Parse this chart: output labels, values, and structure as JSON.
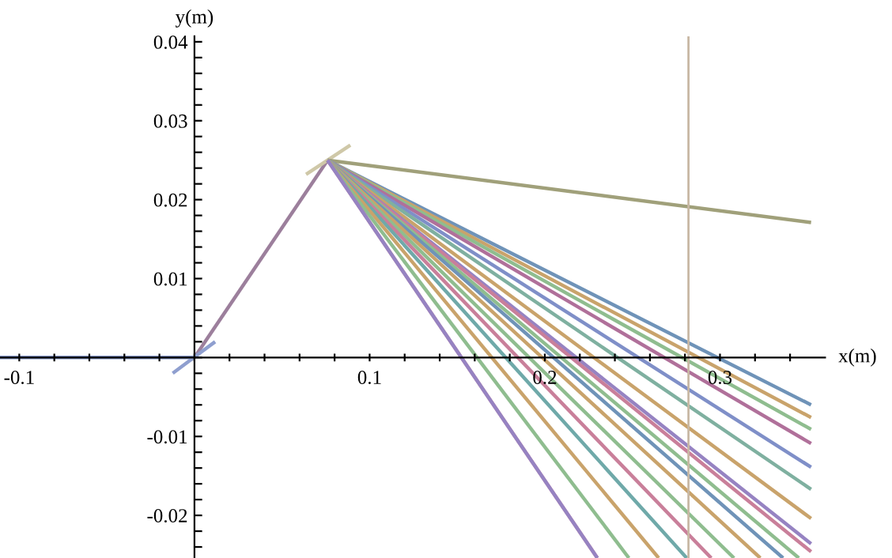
{
  "chart_data": {
    "type": "line",
    "xlabel": "x(m)",
    "ylabel": "y(m)",
    "xlim": [
      -0.111,
      0.36
    ],
    "ylim": [
      -0.0254,
      0.0407
    ],
    "grid": false,
    "marker": "none",
    "line_style": "solid",
    "xticks": [
      -0.1,
      {
        "value": -0.08,
        "label": null
      },
      {
        "value": -0.06,
        "label": null
      },
      {
        "value": -0.04,
        "label": null
      },
      {
        "value": -0.02,
        "label": null
      },
      {
        "value": 0,
        "label": null
      },
      {
        "value": 0.02,
        "label": null
      },
      {
        "value": 0.04,
        "label": null
      },
      {
        "value": 0.06,
        "label": null
      },
      {
        "value": 0.08,
        "label": null
      },
      0.1,
      {
        "value": 0.12,
        "label": null
      },
      {
        "value": 0.14,
        "label": null
      },
      {
        "value": 0.16,
        "label": null
      },
      {
        "value": 0.18,
        "label": null
      },
      0.2,
      {
        "value": 0.22,
        "label": null
      },
      {
        "value": 0.24,
        "label": null
      },
      {
        "value": 0.26,
        "label": null
      },
      {
        "value": 0.28,
        "label": null
      },
      0.3,
      {
        "value": 0.32,
        "label": null
      },
      {
        "value": 0.34,
        "label": null
      }
    ],
    "yticks": [
      {
        "value": -0.024,
        "label": null
      },
      {
        "value": -0.022,
        "label": null
      },
      -0.02,
      {
        "value": -0.018,
        "label": null
      },
      {
        "value": -0.016,
        "label": null
      },
      {
        "value": -0.014,
        "label": null
      },
      {
        "value": -0.012,
        "label": null
      },
      -0.01,
      {
        "value": -0.008,
        "label": null
      },
      {
        "value": -0.006,
        "label": null
      },
      {
        "value": -0.004,
        "label": null
      },
      {
        "value": -0.002,
        "label": null
      },
      {
        "value": 0,
        "label": null
      },
      {
        "value": 0.002,
        "label": null
      },
      {
        "value": 0.004,
        "label": null
      },
      {
        "value": 0.006,
        "label": null
      },
      {
        "value": 0.008,
        "label": null
      },
      0.01,
      {
        "value": 0.012,
        "label": null
      },
      {
        "value": 0.014,
        "label": null
      },
      {
        "value": 0.016,
        "label": null
      },
      {
        "value": 0.018,
        "label": null
      },
      0.02,
      {
        "value": 0.022,
        "label": null
      },
      {
        "value": 0.024,
        "label": null
      },
      {
        "value": 0.026,
        "label": null
      },
      {
        "value": 0.028,
        "label": null
      },
      0.03,
      {
        "value": 0.032,
        "label": null
      },
      {
        "value": 0.034,
        "label": null
      },
      {
        "value": 0.036,
        "label": null
      },
      {
        "value": 0.038,
        "label": null
      },
      0.04
    ],
    "ref_lines": [
      {
        "axis": "x",
        "value": 0.282,
        "color": "#c8b8a4"
      }
    ],
    "series": [
      {
        "color": "#7f8fc0",
        "x": [
          -0.111,
          0
        ],
        "values": [
          0,
          0
        ]
      },
      {
        "color": "#9c7f9c",
        "x": [
          0,
          0.076
        ],
        "values": [
          0,
          0.025
        ]
      },
      {
        "color": "#8f9fcf",
        "x": [
          -0.0124,
          0.0118
        ],
        "values": [
          -0.002,
          0.002
        ]
      },
      {
        "color": "#cfc8a8",
        "x": [
          0.0637,
          0.089
        ],
        "values": [
          0.0232,
          0.0269
        ]
      },
      {
        "color": "#a0a07a",
        "x": [
          0.076,
          0.352
        ],
        "values": [
          0.025,
          0.0171
        ]
      },
      {
        "color": "#6f93b8",
        "x": [
          0.076,
          0.352
        ],
        "values": [
          0.025,
          -0.006
        ]
      },
      {
        "color": "#c9a36b",
        "x": [
          0.076,
          0.352
        ],
        "values": [
          0.025,
          -0.0076
        ]
      },
      {
        "color": "#8fbd8f",
        "x": [
          0.076,
          0.352
        ],
        "values": [
          0.025,
          -0.0091
        ]
      },
      {
        "color": "#b0709a",
        "x": [
          0.076,
          0.352
        ],
        "values": [
          0.025,
          -0.0109
        ]
      },
      {
        "color": "#7f8fc8",
        "x": [
          0.076,
          0.352
        ],
        "values": [
          0.025,
          -0.0139
        ]
      },
      {
        "color": "#7fb0a0",
        "x": [
          0.076,
          0.352
        ],
        "values": [
          0.025,
          -0.0167
        ]
      },
      {
        "color": "#c9a36b",
        "x": [
          0.076,
          0.352
        ],
        "values": [
          0.025,
          -0.0204
        ]
      },
      {
        "color": "#9683c2",
        "x": [
          0.076,
          0.352
        ],
        "values": [
          0.025,
          -0.0236
        ]
      },
      {
        "color": "#c97f9a",
        "x": [
          0.076,
          0.352
        ],
        "values": [
          0.025,
          -0.0246
        ]
      },
      {
        "color": "#8fbd8f",
        "x": [
          0.076,
          0.345
        ],
        "values": [
          0.025,
          -0.0254
        ]
      },
      {
        "color": "#6f93b8",
        "x": [
          0.076,
          0.336
        ],
        "values": [
          0.025,
          -0.0254
        ]
      },
      {
        "color": "#c9a36b",
        "x": [
          0.076,
          0.323
        ],
        "values": [
          0.025,
          -0.0254
        ]
      },
      {
        "color": "#8fbd8f",
        "x": [
          0.076,
          0.308
        ],
        "values": [
          0.025,
          -0.0254
        ]
      },
      {
        "color": "#c97f9a",
        "x": [
          0.076,
          0.295
        ],
        "values": [
          0.025,
          -0.0254
        ]
      },
      {
        "color": "#6fa9a9",
        "x": [
          0.076,
          0.281
        ],
        "values": [
          0.025,
          -0.0254
        ]
      },
      {
        "color": "#c9a36b",
        "x": [
          0.076,
          0.265
        ],
        "values": [
          0.025,
          -0.0254
        ]
      },
      {
        "color": "#8fbd8f",
        "x": [
          0.076,
          0.248
        ],
        "values": [
          0.025,
          -0.0254
        ]
      },
      {
        "color": "#c97f9a",
        "x": [
          0.076,
          0.23
        ],
        "values": [
          0.025,
          -0.0254
        ]
      },
      {
        "color": "#9683c2",
        "x": [
          0.076,
          0.23
        ],
        "values": [
          0.025,
          -0.0254
        ]
      }
    ]
  }
}
